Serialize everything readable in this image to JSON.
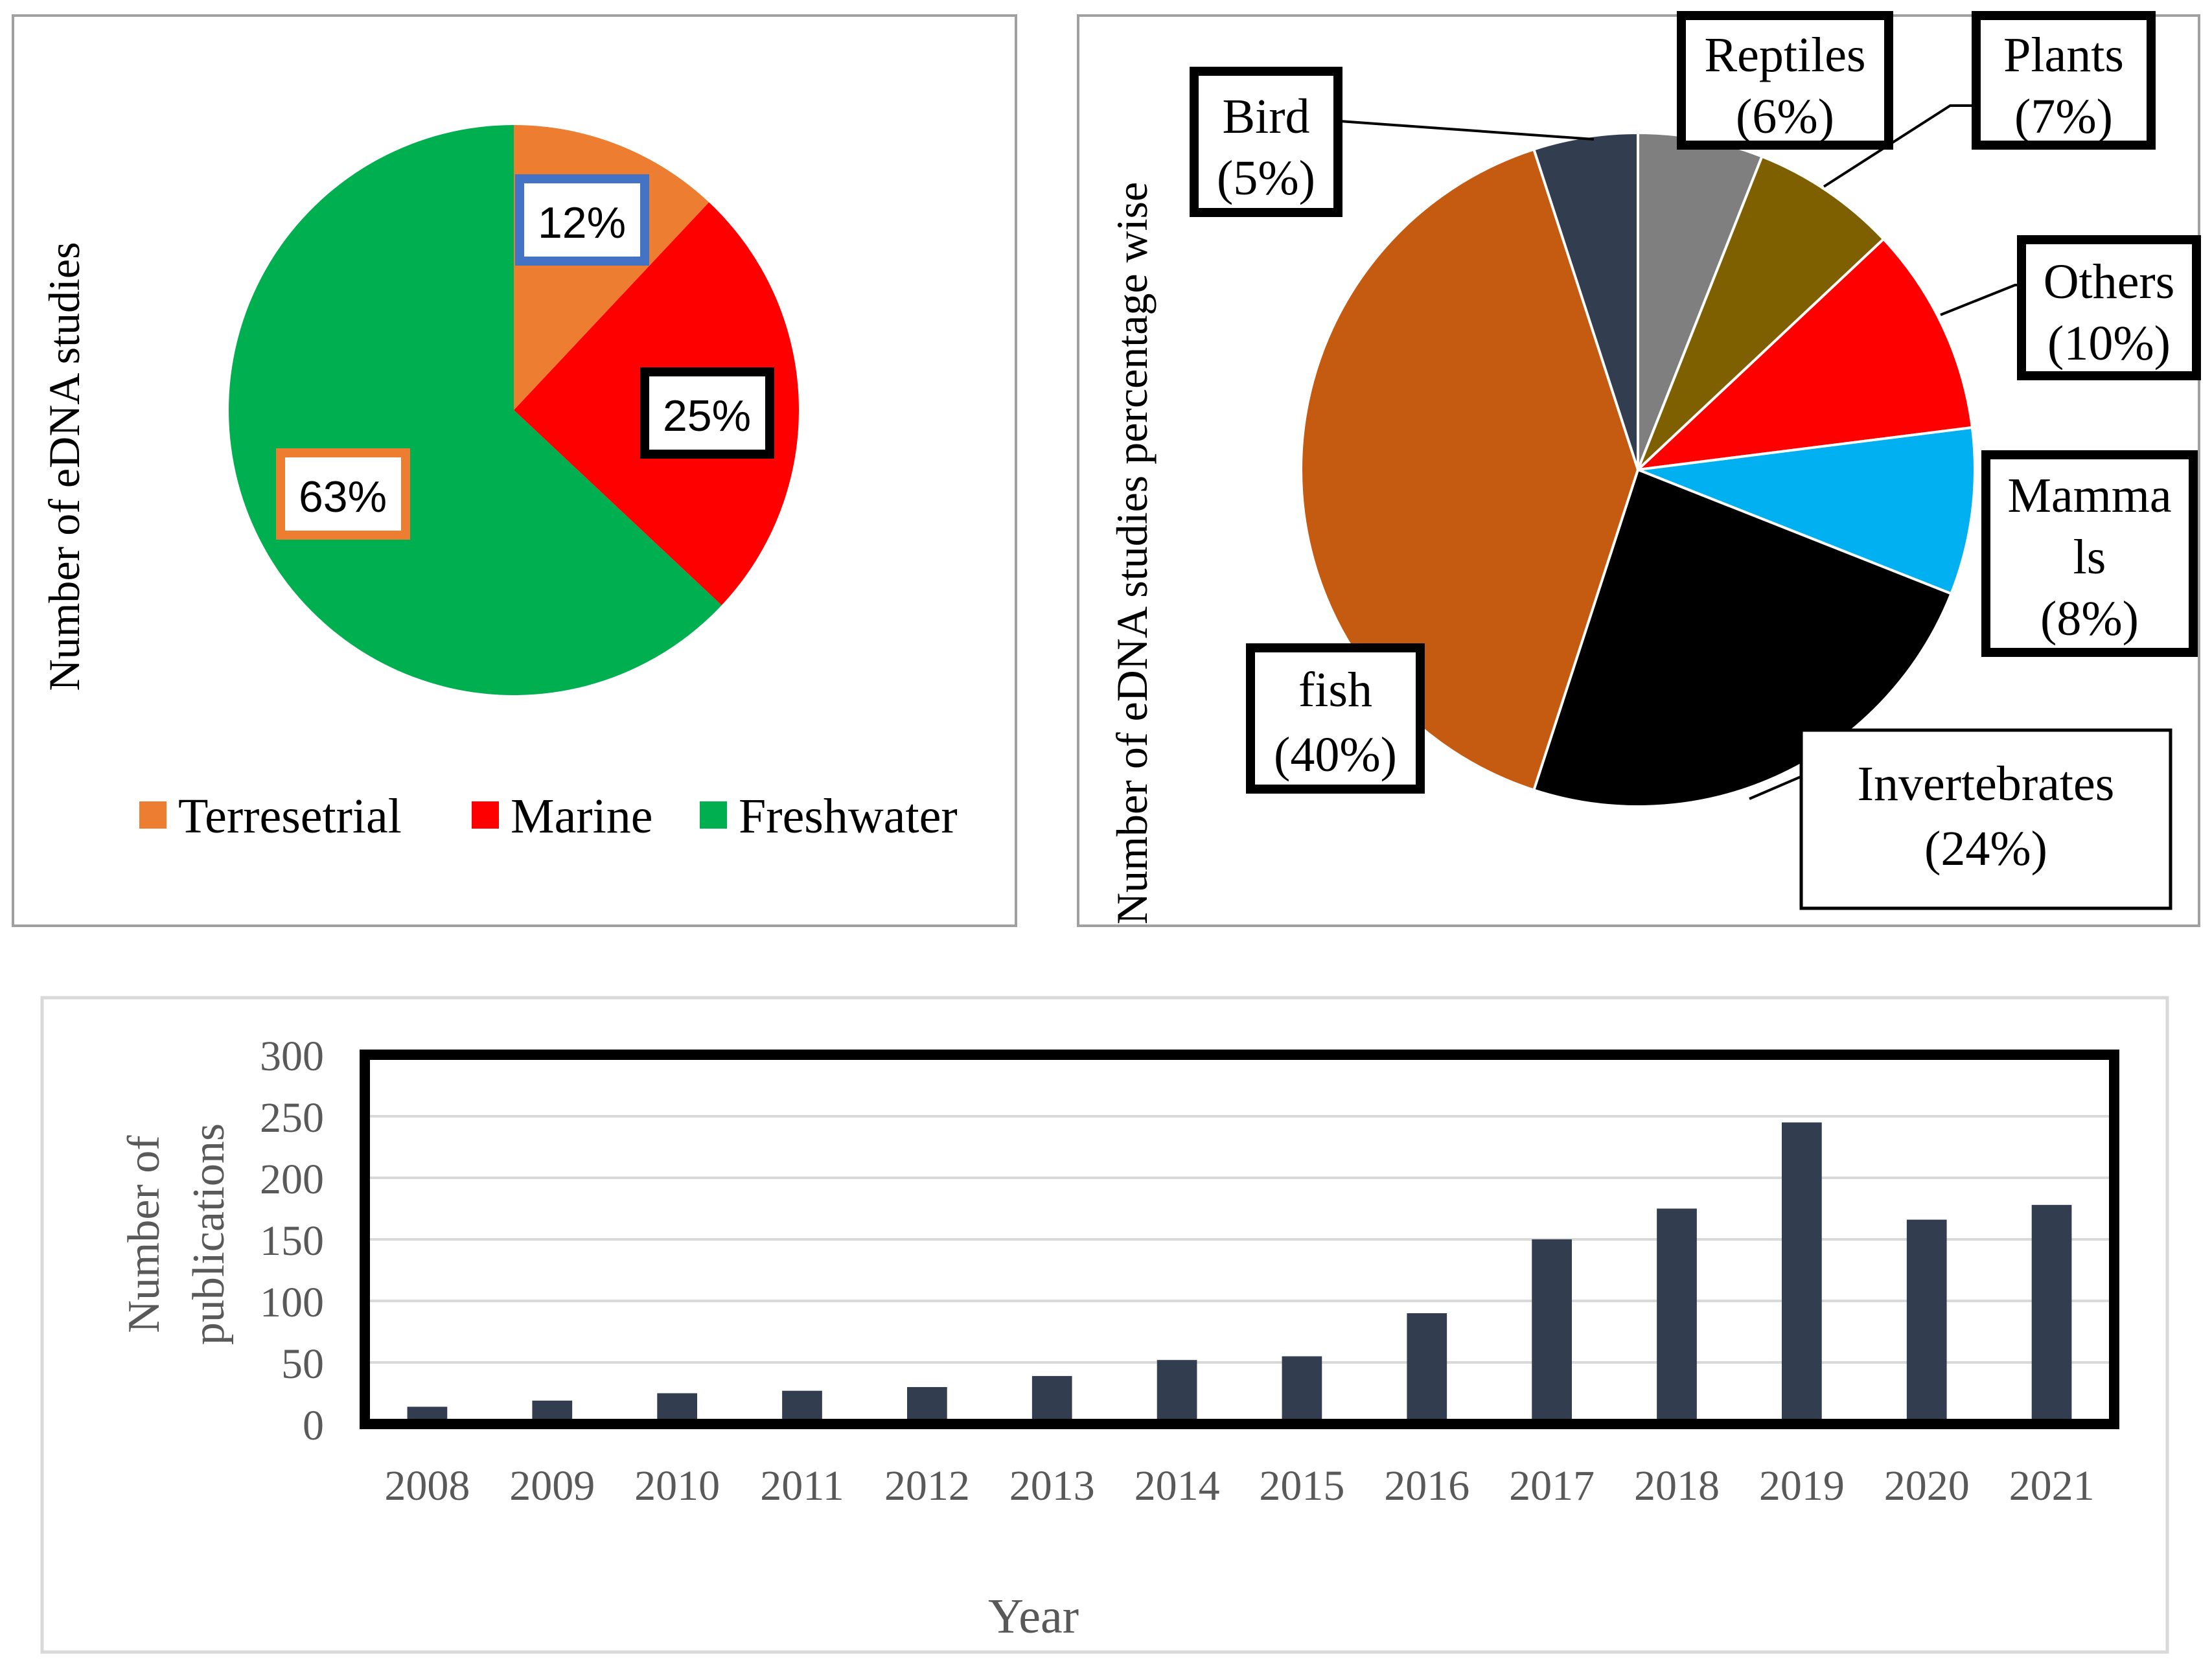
{
  "colors": {
    "terrestrial": "#ED7D31",
    "marine": "#FF0000",
    "freshwater": "#00B050",
    "bar": "#323D4F",
    "label_box_blue": "#4472C4",
    "label_box_orange": "#ED7D31",
    "panel_border": "#A0A0A0",
    "axis_text": "#595959",
    "slice_edge": "#FFFFFF",
    "gridline": "#D9D9D9"
  },
  "chart_data": [
    {
      "type": "pie",
      "ylabel": "Number of eDNA studies",
      "legend_position": "bottom",
      "categories": [
        "Terresetrial",
        "Marine",
        "Freshwater"
      ],
      "values": [
        12,
        25,
        63
      ],
      "data_labels": [
        "12%",
        "25%",
        "63%"
      ],
      "color_keys": [
        "terrestrial",
        "marine",
        "freshwater"
      ]
    },
    {
      "type": "pie",
      "ylabel": "Number of eDNA studies percentage wise",
      "slices": [
        {
          "name": "Reptiles",
          "value": 6,
          "label": [
            "Reptiles",
            "(6%)"
          ],
          "color": "#7F7F7F"
        },
        {
          "name": "Plants",
          "value": 7,
          "label": [
            "Plants",
            "(7%)"
          ],
          "color": "#7F6000"
        },
        {
          "name": "Others",
          "value": 10,
          "label": [
            "Others",
            "(10%)"
          ],
          "color": "#FF0000"
        },
        {
          "name": "Mammals",
          "value": 8,
          "label": [
            "Mamma",
            "ls",
            "(8%)"
          ],
          "color": "#00B0F0"
        },
        {
          "name": "Invertebrates",
          "value": 24,
          "label": [
            "Invertebrates",
            "(24%)"
          ],
          "color": "#000000"
        },
        {
          "name": "fish",
          "value": 40,
          "label": [
            "fish",
            "(40%)"
          ],
          "color": "#C55A11"
        },
        {
          "name": "Bird",
          "value": 5,
          "label": [
            "Bird",
            "(5%)"
          ],
          "color": "#323D4F"
        }
      ]
    },
    {
      "type": "bar",
      "xlabel": "Year",
      "ylabel": [
        "Number of",
        "publications"
      ],
      "ylim": [
        0,
        300
      ],
      "yticks": [
        0,
        50,
        100,
        150,
        200,
        250,
        300
      ],
      "grid": true,
      "categories": [
        "2008",
        "2009",
        "2010",
        "2011",
        "2012",
        "2013",
        "2014",
        "2015",
        "2016",
        "2017",
        "2018",
        "2019",
        "2020",
        "2021"
      ],
      "values": [
        14,
        19,
        25,
        27,
        30,
        39,
        52,
        55,
        90,
        150,
        175,
        245,
        166,
        178
      ]
    }
  ]
}
